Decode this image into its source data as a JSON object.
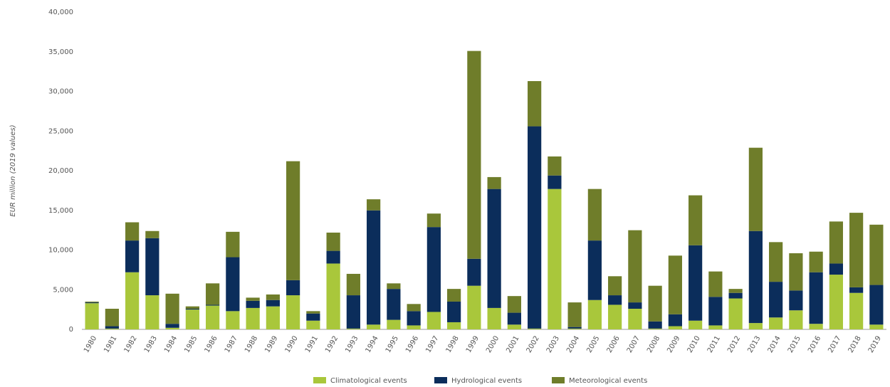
{
  "chart_data": {
    "type": "stacked_bar",
    "y_axis_label": "EUR million (2019 values)",
    "categories": [
      "1980",
      "1981",
      "1982",
      "1983",
      "1984",
      "1985",
      "1986",
      "1987",
      "1988",
      "1989",
      "1990",
      "1991",
      "1992",
      "1993",
      "1994",
      "1995",
      "1996",
      "1997",
      "1998",
      "1999",
      "2000",
      "2001",
      "2002",
      "2003",
      "2004",
      "2005",
      "2006",
      "2007",
      "2008",
      "2009",
      "2010",
      "2011",
      "2012",
      "2013",
      "2014",
      "2015",
      "2016",
      "2017",
      "2018",
      "2019"
    ],
    "series": [
      {
        "name": "Climatological events",
        "color": "#a9c73b",
        "values": [
          3300,
          100,
          7200,
          4300,
          200,
          2500,
          3000,
          2300,
          2700,
          2900,
          4300,
          1100,
          8300,
          100,
          600,
          1200,
          500,
          2200,
          900,
          5500,
          2700,
          600,
          100,
          17700,
          100,
          3700,
          3100,
          2600,
          100,
          400,
          1100,
          500,
          3900,
          800,
          1500,
          2400,
          700,
          6900,
          4600,
          600
        ]
      },
      {
        "name": "Hydrological events",
        "color": "#0b2d5b",
        "values": [
          100,
          300,
          4000,
          7200,
          500,
          100,
          100,
          6800,
          900,
          800,
          1900,
          900,
          1600,
          4200,
          14400,
          3900,
          1800,
          10700,
          2600,
          3400,
          15000,
          1500,
          25500,
          1700,
          200,
          7500,
          1200,
          800,
          900,
          1500,
          9500,
          3600,
          700,
          11600,
          4500,
          2500,
          6500,
          1400,
          700,
          5000
        ]
      },
      {
        "name": "Meteorological events",
        "color": "#6f7d2a",
        "values": [
          100,
          2200,
          2300,
          900,
          3800,
          300,
          2700,
          3200,
          400,
          700,
          15000,
          300,
          2300,
          2700,
          1400,
          700,
          900,
          1700,
          1600,
          26200,
          1500,
          2100,
          5700,
          2400,
          3100,
          6500,
          2400,
          9100,
          4500,
          7400,
          6300,
          3200,
          500,
          10500,
          5000,
          4700,
          2600,
          5300,
          9400,
          7600
        ]
      }
    ],
    "ylim": [
      0,
      40000
    ],
    "yticks": [
      0,
      {
        "value": 5000,
        "label": "5,000"
      },
      {
        "value": 10000,
        "label": "10,000"
      },
      {
        "value": 15000,
        "label": "15,000"
      },
      {
        "value": 20000,
        "label": "20,000"
      },
      {
        "value": 25000,
        "label": "25,000"
      },
      {
        "value": 30000,
        "label": "30,000"
      },
      {
        "value": 35000,
        "label": "35,000"
      },
      {
        "value": 40000,
        "label": "40,000"
      }
    ],
    "grid": false,
    "legend": "bottom"
  }
}
